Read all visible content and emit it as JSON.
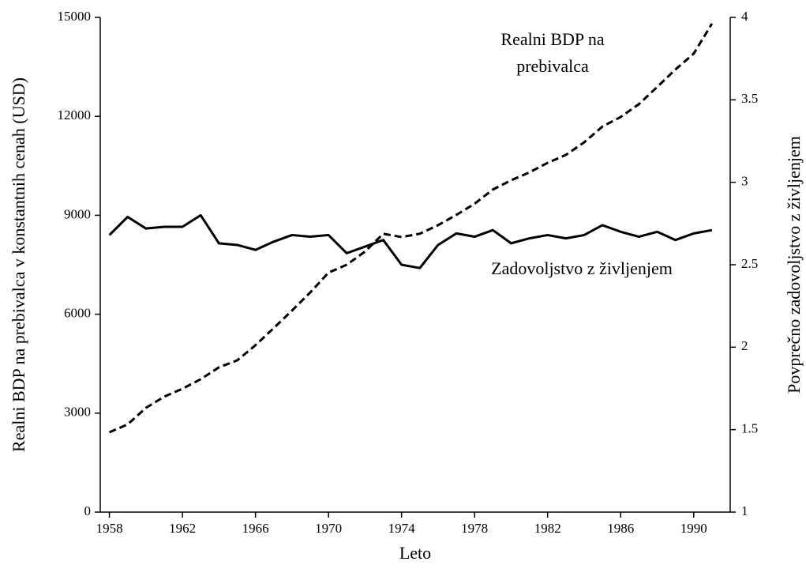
{
  "chart_data": {
    "type": "line",
    "x_label": "Leto",
    "y_label": "Realni BDP na prebivalca v konstantnih cenah (USD)",
    "y2_label": "Povprečno zadovoljstvo z življenjem",
    "annotations": [
      "Realni BDP na",
      "prebivalca",
      "Zadovoljstvo z življenjem"
    ],
    "x": [
      1958,
      1959,
      1960,
      1961,
      1962,
      1963,
      1964,
      1965,
      1966,
      1967,
      1968,
      1969,
      1970,
      1971,
      1972,
      1973,
      1974,
      1975,
      1976,
      1977,
      1978,
      1979,
      1980,
      1981,
      1982,
      1983,
      1984,
      1985,
      1986,
      1987,
      1988,
      1989,
      1990,
      1991
    ],
    "series": [
      {
        "color": "#000000",
        "dashed": true,
        "values": [
          2420,
          2660,
          3160,
          3500,
          3740,
          4030,
          4390,
          4600,
          5060,
          5580,
          6110,
          6660,
          7260,
          7500,
          7900,
          8440,
          8340,
          8440,
          8700,
          9010,
          9350,
          9780,
          10060,
          10300,
          10590,
          10830,
          11210,
          11690,
          11980,
          12370,
          12890,
          13420,
          13900,
          14810
        ]
      },
      {
        "color": "#000000",
        "dashed": false,
        "axis": "y2",
        "values": [
          2.68,
          2.79,
          2.72,
          2.73,
          2.73,
          2.8,
          2.63,
          2.62,
          2.59,
          2.64,
          2.68,
          2.67,
          2.68,
          2.57,
          2.61,
          2.65,
          2.5,
          2.48,
          2.62,
          2.69,
          2.67,
          2.71,
          2.63,
          2.66,
          2.68,
          2.66,
          2.68,
          2.74,
          2.7,
          2.67,
          2.7,
          2.65,
          2.69,
          2.71
        ]
      }
    ],
    "xlim": [
      1957.5,
      1992
    ],
    "xticks": [
      1958,
      1962,
      1966,
      1970,
      1974,
      1978,
      1982,
      1986,
      1990
    ],
    "ylim": [
      0,
      15000
    ],
    "yticks": [
      0,
      3000,
      6000,
      9000,
      12000,
      15000
    ],
    "y2lim": [
      1,
      4
    ],
    "y2ticks": [
      1,
      1.5,
      2,
      2.5,
      3,
      3.5,
      4
    ]
  }
}
